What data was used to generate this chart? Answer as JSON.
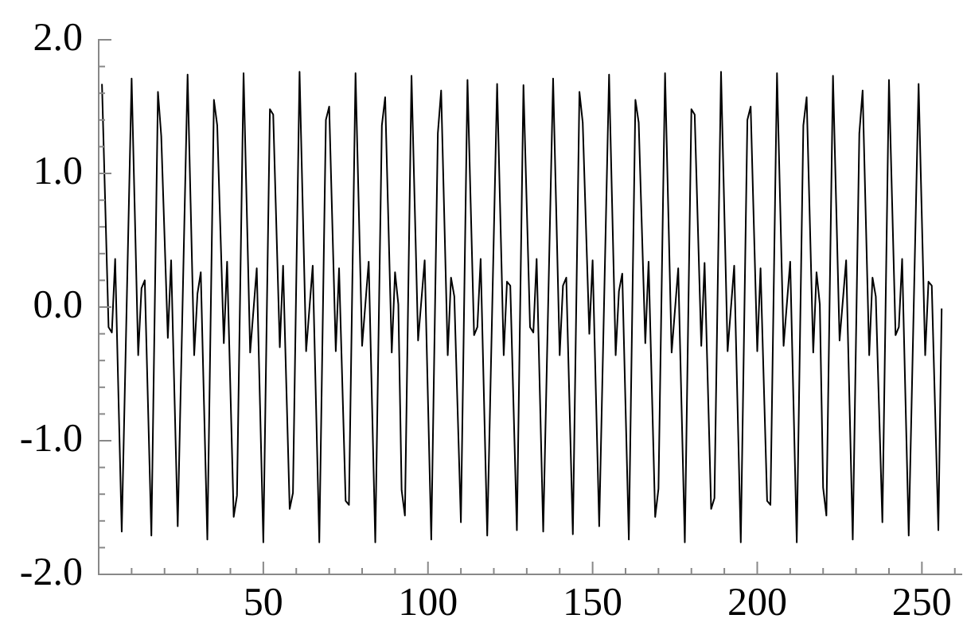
{
  "chart_data": {
    "type": "line",
    "color": "#000000",
    "marker": "none",
    "line_style": "solid",
    "grid": false,
    "legend": false,
    "x": [
      1,
      3,
      4,
      5,
      7,
      10,
      12,
      13,
      14,
      16,
      18,
      19,
      21,
      22,
      24,
      27,
      29,
      30,
      31,
      33,
      35,
      36,
      38,
      39,
      41,
      42,
      44,
      46,
      48,
      50,
      52,
      53,
      55,
      56,
      58,
      59,
      61,
      63,
      65,
      67,
      69,
      70,
      72,
      73,
      75,
      76,
      78,
      80,
      82,
      84,
      86,
      87,
      89,
      90,
      91,
      92,
      93,
      95,
      97,
      99,
      101,
      103,
      104,
      106,
      107,
      108,
      110,
      112,
      114,
      115,
      116,
      118,
      121,
      123,
      124,
      125,
      127,
      129,
      131,
      132,
      133,
      135,
      138,
      140,
      141,
      142,
      144,
      146,
      147,
      149,
      150,
      152,
      155,
      157,
      158,
      159,
      161,
      163,
      164,
      166,
      167,
      169,
      170,
      172,
      174,
      176,
      178,
      180,
      181,
      183,
      184,
      186,
      187,
      189,
      191,
      193,
      195,
      197,
      198,
      200,
      201,
      203,
      204,
      206,
      208,
      210,
      212,
      214,
      215,
      217,
      218,
      219,
      220,
      221,
      223,
      225,
      227,
      229,
      231,
      232,
      234,
      235,
      236,
      238,
      240,
      242,
      243,
      244,
      246,
      249,
      251,
      252,
      253,
      255,
      256
    ],
    "values": [
      1.67,
      -0.15,
      -0.19,
      0.36,
      -1.68,
      1.71,
      -0.36,
      0.14,
      0.2,
      -1.71,
      1.61,
      1.28,
      -0.23,
      0.35,
      -1.64,
      1.74,
      -0.36,
      0.1,
      0.26,
      -1.74,
      1.55,
      1.36,
      -0.27,
      0.34,
      -1.57,
      -1.41,
      1.75,
      -0.34,
      0.29,
      -1.76,
      1.48,
      1.44,
      -0.3,
      0.31,
      -1.51,
      -1.39,
      1.76,
      -0.33,
      0.31,
      -1.76,
      1.4,
      1.5,
      -0.33,
      0.29,
      -1.45,
      -1.48,
      1.75,
      -0.29,
      0.34,
      -1.76,
      1.36,
      1.57,
      -0.34,
      0.26,
      0.02,
      -1.37,
      -1.56,
      1.73,
      -0.25,
      0.35,
      -1.74,
      1.3,
      1.62,
      -0.36,
      0.22,
      0.08,
      -1.61,
      1.7,
      -0.21,
      -0.15,
      0.36,
      -1.71,
      1.67,
      -0.36,
      0.19,
      0.16,
      -1.67,
      1.66,
      -0.15,
      -0.19,
      0.36,
      -1.68,
      1.71,
      -0.36,
      0.16,
      0.22,
      -1.7,
      1.61,
      1.38,
      -0.2,
      0.35,
      -1.64,
      1.74,
      -0.36,
      0.12,
      0.25,
      -1.74,
      1.55,
      1.38,
      -0.27,
      0.34,
      -1.57,
      -1.36,
      1.75,
      -0.34,
      0.29,
      -1.76,
      1.48,
      1.44,
      -0.29,
      0.33,
      -1.51,
      -1.43,
      1.76,
      -0.33,
      0.31,
      -1.76,
      1.4,
      1.5,
      -0.33,
      0.29,
      -1.45,
      -1.48,
      1.75,
      -0.29,
      0.34,
      -1.76,
      1.36,
      1.57,
      -0.34,
      0.26,
      0.02,
      -1.35,
      -1.56,
      1.73,
      -0.25,
      0.35,
      -1.74,
      1.3,
      1.62,
      -0.36,
      0.22,
      0.08,
      -1.61,
      1.7,
      -0.21,
      -0.15,
      0.36,
      -1.71,
      1.67,
      -0.36,
      0.19,
      0.16,
      -1.67,
      -0.01
    ],
    "xlim": [
      0,
      262
    ],
    "xticks": [
      {
        "value": 10,
        "label": null
      },
      {
        "value": 20,
        "label": null
      },
      {
        "value": 30,
        "label": null
      },
      {
        "value": 40,
        "label": null
      },
      50,
      {
        "value": 60,
        "label": null
      },
      {
        "value": 70,
        "label": null
      },
      {
        "value": 80,
        "label": null
      },
      {
        "value": 90,
        "label": null
      },
      100,
      {
        "value": 110,
        "label": null
      },
      {
        "value": 120,
        "label": null
      },
      {
        "value": 130,
        "label": null
      },
      {
        "value": 140,
        "label": null
      },
      150,
      {
        "value": 160,
        "label": null
      },
      {
        "value": 170,
        "label": null
      },
      {
        "value": 180,
        "label": null
      },
      {
        "value": 190,
        "label": null
      },
      200,
      {
        "value": 210,
        "label": null
      },
      {
        "value": 220,
        "label": null
      },
      {
        "value": 230,
        "label": null
      },
      {
        "value": 240,
        "label": null
      },
      250,
      {
        "value": 260,
        "label": null
      }
    ],
    "ylim": [
      -2,
      2
    ],
    "yticks": [
      {
        "value": -2,
        "label": "-2.0"
      },
      {
        "value": -1.8,
        "label": null
      },
      {
        "value": -1.6,
        "label": null
      },
      {
        "value": -1.4,
        "label": null
      },
      {
        "value": -1.2,
        "label": null
      },
      {
        "value": -1,
        "label": "-1.0"
      },
      {
        "value": -0.8,
        "label": null
      },
      {
        "value": -0.6,
        "label": null
      },
      {
        "value": -0.4,
        "label": null
      },
      {
        "value": -0.2,
        "label": null
      },
      {
        "value": 0,
        "label": "0.0"
      },
      {
        "value": 0.2,
        "label": null
      },
      {
        "value": 0.4,
        "label": null
      },
      {
        "value": 0.6,
        "label": null
      },
      {
        "value": 0.8,
        "label": null
      },
      {
        "value": 1,
        "label": "1.0"
      },
      {
        "value": 1.2,
        "label": null
      },
      {
        "value": 1.4,
        "label": null
      },
      {
        "value": 1.6,
        "label": null
      },
      {
        "value": 1.8,
        "label": null
      },
      {
        "value": 2,
        "label": "2.0"
      }
    ]
  }
}
